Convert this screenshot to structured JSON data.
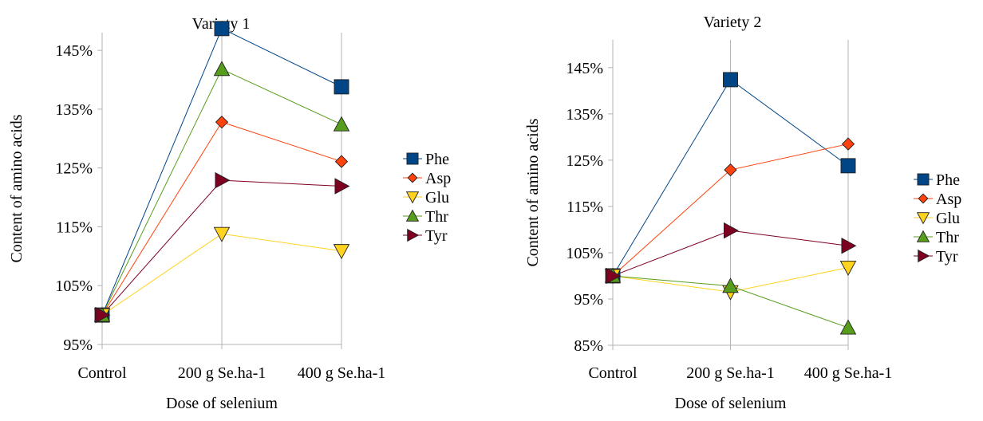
{
  "chart_data": [
    {
      "type": "line",
      "title": "Variety 1",
      "xlabel": "Dose of selenium",
      "ylabel": "Content of amino acids",
      "categories": [
        "Control",
        "200 g Se.ha-1",
        "400 g Se.ha-1"
      ],
      "ylim": [
        95,
        148
      ],
      "yticks": [
        95,
        105,
        115,
        125,
        135,
        145
      ],
      "ytick_labels": [
        "95%",
        "105%",
        "115%",
        "125%",
        "135%",
        "145%"
      ],
      "grid": "vertical",
      "legend_position": "right",
      "series": [
        {
          "name": "Phe",
          "values": [
            100,
            148.7,
            138.8
          ],
          "color": "#004586",
          "marker": "square"
        },
        {
          "name": "Asp",
          "values": [
            100,
            132.8,
            126.1
          ],
          "color": "#ff420e",
          "marker": "diamond"
        },
        {
          "name": "Glu",
          "values": [
            100,
            113.8,
            110.9
          ],
          "color": "#ffd320",
          "marker": "triangle-down"
        },
        {
          "name": "Thr",
          "values": [
            100,
            141.8,
            132.4
          ],
          "color": "#579d1c",
          "marker": "triangle-up"
        },
        {
          "name": "Tyr",
          "values": [
            100,
            122.9,
            121.9
          ],
          "color": "#7e0021",
          "marker": "triangle-right"
        }
      ]
    },
    {
      "type": "line",
      "title": "Variety 2",
      "xlabel": "Dose of selenium",
      "ylabel": "Content of amino acids",
      "categories": [
        "Control",
        "200 g Se.ha-1",
        "400 g Se.ha-1"
      ],
      "ylim": [
        85,
        151
      ],
      "yticks": [
        85,
        95,
        105,
        115,
        125,
        135,
        145
      ],
      "ytick_labels": [
        "85%",
        "95%",
        "105%",
        "115%",
        "125%",
        "135%",
        "145%"
      ],
      "grid": "vertical",
      "legend_position": "right",
      "series": [
        {
          "name": "Phe",
          "values": [
            100,
            142.4,
            123.8
          ],
          "color": "#004586",
          "marker": "square"
        },
        {
          "name": "Asp",
          "values": [
            100,
            122.9,
            128.5
          ],
          "color": "#ff420e",
          "marker": "diamond"
        },
        {
          "name": "Glu",
          "values": [
            100,
            96.5,
            101.8
          ],
          "color": "#ffd320",
          "marker": "triangle-down"
        },
        {
          "name": "Thr",
          "values": [
            100,
            97.8,
            88.8
          ],
          "color": "#579d1c",
          "marker": "triangle-up"
        },
        {
          "name": "Tyr",
          "values": [
            100,
            109.8,
            106.5
          ],
          "color": "#7e0021",
          "marker": "triangle-right"
        }
      ]
    }
  ]
}
